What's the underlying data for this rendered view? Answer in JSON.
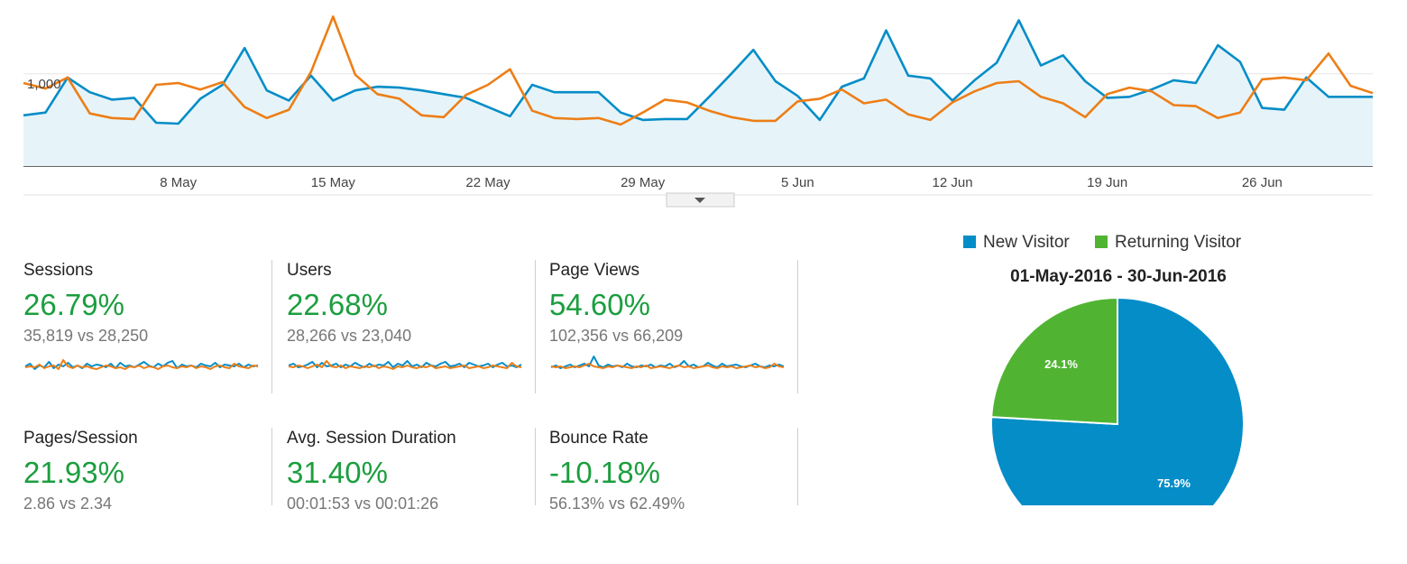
{
  "colors": {
    "new_visitor": "#058dc7",
    "returning_visitor": "#50b432",
    "accent_positive": "#1b9e3e"
  },
  "chart_data": [
    {
      "type": "line",
      "x_tick_labels": [
        "8 May",
        "15 May",
        "22 May",
        "29 May",
        "5 Jun",
        "12 Jun",
        "19 Jun",
        "26 Jun"
      ],
      "y_tick_labels": [
        "1,000"
      ],
      "ylim": [
        0,
        1800
      ],
      "grid": true,
      "series": [
        {
          "color": "#058dc7",
          "fill": true,
          "values": [
            550,
            580,
            960,
            800,
            720,
            740,
            470,
            460,
            730,
            880,
            1280,
            820,
            710,
            980,
            710,
            820,
            860,
            850,
            820,
            780,
            740,
            640,
            540,
            880,
            800,
            800,
            800,
            580,
            500,
            510,
            510,
            750,
            1000,
            1260,
            920,
            760,
            500,
            860,
            950,
            1470,
            980,
            950,
            710,
            930,
            1120,
            1580,
            1090,
            1200,
            920,
            740,
            750,
            830,
            930,
            900,
            1310,
            1130,
            630,
            610,
            960,
            750,
            750,
            750
          ]
        },
        {
          "color": "#ed7e17",
          "fill": false,
          "values": [
            900,
            840,
            960,
            570,
            520,
            510,
            880,
            900,
            830,
            910,
            640,
            520,
            610,
            1020,
            1620,
            990,
            780,
            730,
            550,
            530,
            770,
            880,
            1050,
            600,
            520,
            510,
            520,
            450,
            580,
            720,
            690,
            600,
            530,
            490,
            490,
            700,
            730,
            830,
            680,
            720,
            560,
            500,
            690,
            810,
            900,
            920,
            750,
            680,
            530,
            780,
            850,
            810,
            660,
            650,
            520,
            580,
            940,
            960,
            930,
            1220,
            870,
            790
          ]
        }
      ]
    },
    {
      "type": "line",
      "title": "Sessions",
      "series": [
        {
          "color": "#058dc7",
          "values": [
            9,
            12,
            6,
            10,
            8,
            14,
            7,
            11,
            9,
            13,
            8,
            10,
            7,
            12,
            9,
            11,
            10,
            8,
            12,
            7,
            13,
            9,
            10,
            8,
            11,
            14,
            10,
            8,
            12,
            9,
            13,
            15,
            7,
            11,
            9,
            10,
            8,
            12,
            10,
            9,
            13,
            8,
            11,
            10,
            9,
            12,
            8,
            11,
            9,
            10
          ]
        },
        {
          "color": "#ed7e17",
          "values": [
            8,
            9,
            8,
            11,
            7,
            9,
            10,
            6,
            16,
            9,
            7,
            10,
            8,
            9,
            7,
            6,
            8,
            10,
            9,
            7,
            8,
            6,
            9,
            8,
            10,
            7,
            9,
            8,
            6,
            9,
            10,
            8,
            7,
            9,
            8,
            10,
            7,
            9,
            8,
            6,
            9,
            10,
            8,
            7,
            12,
            9,
            8,
            7,
            10,
            9
          ]
        }
      ]
    },
    {
      "type": "line",
      "title": "Users",
      "series": [
        {
          "color": "#058dc7",
          "values": [
            10,
            12,
            8,
            9,
            11,
            14,
            8,
            13,
            9,
            10,
            12,
            8,
            11,
            9,
            13,
            10,
            8,
            12,
            9,
            11,
            10,
            14,
            8,
            12,
            10,
            15,
            9,
            11,
            8,
            13,
            10,
            9,
            12,
            14,
            9,
            10,
            12,
            8,
            13,
            11,
            9,
            10,
            12,
            8,
            11,
            13,
            9,
            10,
            8,
            11
          ]
        },
        {
          "color": "#ed7e17",
          "values": [
            9,
            8,
            10,
            9,
            7,
            9,
            11,
            8,
            15,
            9,
            8,
            10,
            7,
            9,
            8,
            7,
            9,
            8,
            10,
            7,
            9,
            8,
            6,
            9,
            8,
            10,
            8,
            7,
            9,
            8,
            10,
            7,
            8,
            9,
            7,
            8,
            9,
            10,
            7,
            8,
            9,
            7,
            8,
            10,
            9,
            8,
            7,
            13,
            9,
            8
          ]
        }
      ]
    },
    {
      "type": "line",
      "title": "Page Views",
      "series": [
        {
          "color": "#058dc7",
          "values": [
            8,
            10,
            7,
            9,
            11,
            8,
            10,
            12,
            9,
            20,
            10,
            8,
            11,
            9,
            10,
            8,
            12,
            9,
            8,
            10,
            9,
            11,
            8,
            10,
            9,
            12,
            8,
            10,
            15,
            9,
            11,
            8,
            9,
            13,
            10,
            8,
            12,
            9,
            10,
            11,
            9,
            8,
            10,
            12,
            9,
            8,
            10,
            9,
            11,
            9
          ]
        },
        {
          "color": "#ed7e17",
          "values": [
            9,
            8,
            9,
            7,
            8,
            9,
            8,
            10,
            12,
            9,
            8,
            7,
            9,
            8,
            10,
            9,
            8,
            7,
            9,
            8,
            10,
            7,
            8,
            9,
            8,
            7,
            9,
            10,
            8,
            9,
            7,
            8,
            9,
            10,
            8,
            7,
            9,
            8,
            9,
            7,
            8,
            9,
            10,
            8,
            9,
            7,
            8,
            12,
            9,
            8
          ]
        }
      ]
    },
    {
      "type": "pie",
      "title": "01-May-2016 - 30-Jun-2016",
      "legend": [
        "New Visitor",
        "Returning Visitor"
      ],
      "legend_position": "top",
      "slices": [
        {
          "label": "New Visitor",
          "value": 75.9,
          "display": "75.9%",
          "color": "#058dc7"
        },
        {
          "label": "Returning Visitor",
          "value": 24.1,
          "display": "24.1%",
          "color": "#50b432"
        }
      ]
    }
  ],
  "metrics": [
    {
      "label": "Sessions",
      "value": "26.79%",
      "compare": "35,819 vs 28,250"
    },
    {
      "label": "Users",
      "value": "22.68%",
      "compare": "28,266 vs 23,040"
    },
    {
      "label": "Page Views",
      "value": "54.60%",
      "compare": "102,356 vs 66,209"
    },
    {
      "label": "Pages/Session",
      "value": "21.93%",
      "compare": "2.86 vs 2.34"
    },
    {
      "label": "Avg. Session Duration",
      "value": "31.40%",
      "compare": "00:01:53 vs 00:01:26"
    },
    {
      "label": "Bounce Rate",
      "value": "-10.18%",
      "compare": "56.13% vs 62.49%"
    }
  ]
}
